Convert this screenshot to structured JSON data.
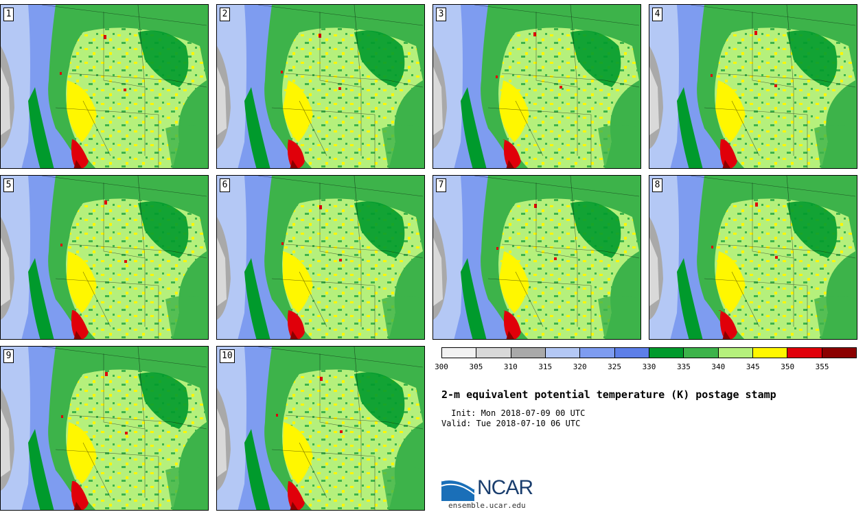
{
  "title": "2-m equivalent potential temperature (K) postage stamp",
  "init": " Init: Mon 2018-07-09 00 UTC",
  "valid": "Valid: Tue 2018-07-10 06 UTC",
  "colorbar": {
    "ticks": [
      "300",
      "305",
      "310",
      "315",
      "320",
      "325",
      "330",
      "335",
      "340",
      "345",
      "350",
      "355"
    ],
    "colors": [
      "#f2f2f2",
      "#d9d9d9",
      "#a9a9a9",
      "#b4c8f5",
      "#7e9cf0",
      "#5d7fe8",
      "#009a2c",
      "#3db34a",
      "#b5f07c",
      "#fff700",
      "#e0000a",
      "#8b0000"
    ]
  },
  "panels": [
    {
      "label": "1"
    },
    {
      "label": "2"
    },
    {
      "label": "3"
    },
    {
      "label": "4"
    },
    {
      "label": "5"
    },
    {
      "label": "6"
    },
    {
      "label": "7"
    },
    {
      "label": "8"
    },
    {
      "label": "9"
    },
    {
      "label": "10"
    }
  ],
  "logo": {
    "text": "NCAR",
    "url": "ensemble.ucar.edu"
  }
}
